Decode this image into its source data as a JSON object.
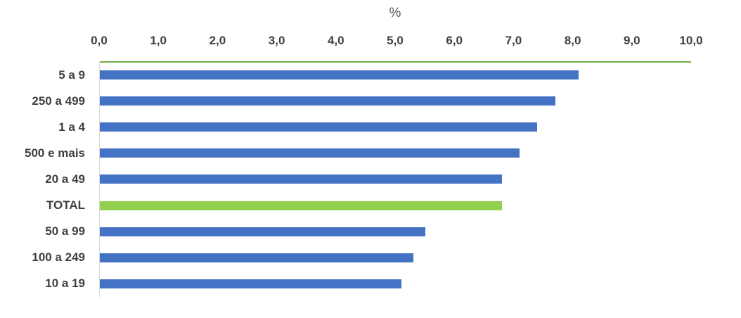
{
  "chart_data": {
    "type": "bar",
    "orientation": "horizontal",
    "title": "%",
    "categories": [
      "5 a 9",
      "250 a 499",
      "1 a 4",
      "500 e mais",
      "20 a 49",
      "TOTAL",
      "50 a 99",
      "100 a 249",
      "10 a 19"
    ],
    "values": [
      8.1,
      7.7,
      7.4,
      7.1,
      6.8,
      6.8,
      5.5,
      5.3,
      5.1
    ],
    "highlight_category": "TOTAL",
    "xlim": [
      0,
      10
    ],
    "x_ticks": [
      "0,0",
      "1,0",
      "2,0",
      "3,0",
      "4,0",
      "5,0",
      "6,0",
      "7,0",
      "8,0",
      "9,0",
      "10,0"
    ],
    "axis_position": "top",
    "grid": "off",
    "legend": "none",
    "colors": {
      "bar": "#4472C4",
      "highlight_bar": "#92D050",
      "top_line": "#70AD47",
      "axis_line": "#D9D9D9",
      "tick_text": "#3F3F3F",
      "title_text": "#595959"
    }
  }
}
